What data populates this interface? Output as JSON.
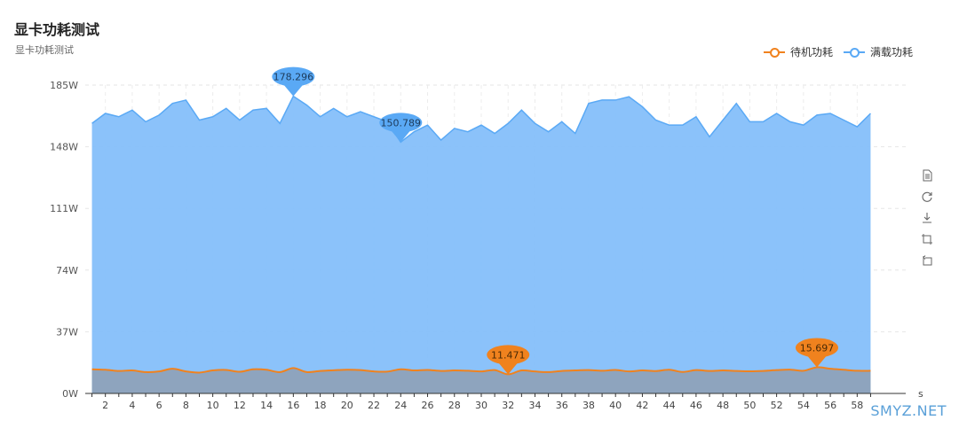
{
  "title": "显卡功耗测试",
  "subtitle": "显卡功耗测试",
  "watermark": "SMYZ.NET",
  "toolbox": [
    "data-view-icon",
    "restore-icon",
    "save-image-icon",
    "data-zoom-icon",
    "data-zoom-reset-icon"
  ],
  "chart_data": {
    "type": "area",
    "x_unit": "s",
    "x": [
      1,
      2,
      3,
      4,
      5,
      6,
      7,
      8,
      9,
      10,
      11,
      12,
      13,
      14,
      15,
      16,
      17,
      18,
      19,
      20,
      21,
      22,
      23,
      24,
      25,
      26,
      27,
      28,
      29,
      30,
      31,
      32,
      33,
      34,
      35,
      36,
      37,
      38,
      39,
      40,
      41,
      42,
      43,
      44,
      45,
      46,
      47,
      48,
      49,
      50,
      51,
      52,
      53,
      54,
      55,
      56,
      57,
      58,
      59
    ],
    "x_tick_labels": [
      "2",
      "4",
      "6",
      "8",
      "10",
      "12",
      "14",
      "16",
      "18",
      "20",
      "22",
      "24",
      "26",
      "28",
      "30",
      "32",
      "34",
      "36",
      "38",
      "40",
      "42",
      "44",
      "46",
      "48",
      "50",
      "52",
      "54",
      "56",
      "58"
    ],
    "y_tick_labels": [
      "0W",
      "37W",
      "74W",
      "111W",
      "148W",
      "185W"
    ],
    "ylim": [
      0,
      185
    ],
    "series": [
      {
        "name": "满载功耗",
        "color": "#5aa9f5",
        "fill": "#85bffa",
        "values": [
          162,
          168,
          166,
          170,
          163,
          167,
          174,
          176,
          164,
          166,
          171,
          164,
          170,
          171,
          162,
          178.296,
          173,
          166,
          171,
          166,
          169,
          166,
          163,
          150.789,
          157,
          161,
          152,
          159,
          157,
          161,
          156,
          162,
          170,
          162,
          157,
          163,
          156,
          174,
          176,
          176,
          178,
          172,
          164,
          161,
          161,
          166,
          154,
          164,
          174,
          163,
          163,
          168,
          163,
          161,
          167,
          168,
          164,
          160,
          168
        ],
        "markers": [
          {
            "x": 16,
            "label": "178.296"
          },
          {
            "x": 24,
            "label": "150.789"
          }
        ]
      },
      {
        "name": "待机功耗",
        "color": "#f0821e",
        "fill": "#8ea4be",
        "values": [
          14.5,
          14.2,
          13.5,
          13.8,
          12.8,
          13.2,
          14.8,
          13.2,
          12.5,
          13.8,
          14.1,
          13.0,
          14.5,
          14.2,
          12.8,
          15.2,
          12.8,
          13.5,
          13.9,
          14.2,
          14.0,
          13.2,
          13.1,
          14.5,
          13.8,
          14.1,
          13.5,
          13.8,
          13.6,
          13.2,
          14.0,
          11.471,
          13.8,
          13.2,
          12.8,
          13.5,
          13.8,
          14.0,
          13.6,
          14.1,
          13.2,
          13.8,
          13.4,
          14.2,
          12.9,
          14.0,
          13.5,
          13.8,
          13.5,
          13.3,
          13.5,
          14.0,
          14.3,
          13.6,
          15.697,
          14.8,
          14.2,
          13.6,
          13.6
        ],
        "markers": [
          {
            "x": 32,
            "label": "11.471"
          },
          {
            "x": 55,
            "label": "15.697"
          }
        ]
      }
    ],
    "legend_position": "top-right",
    "grid": true
  }
}
